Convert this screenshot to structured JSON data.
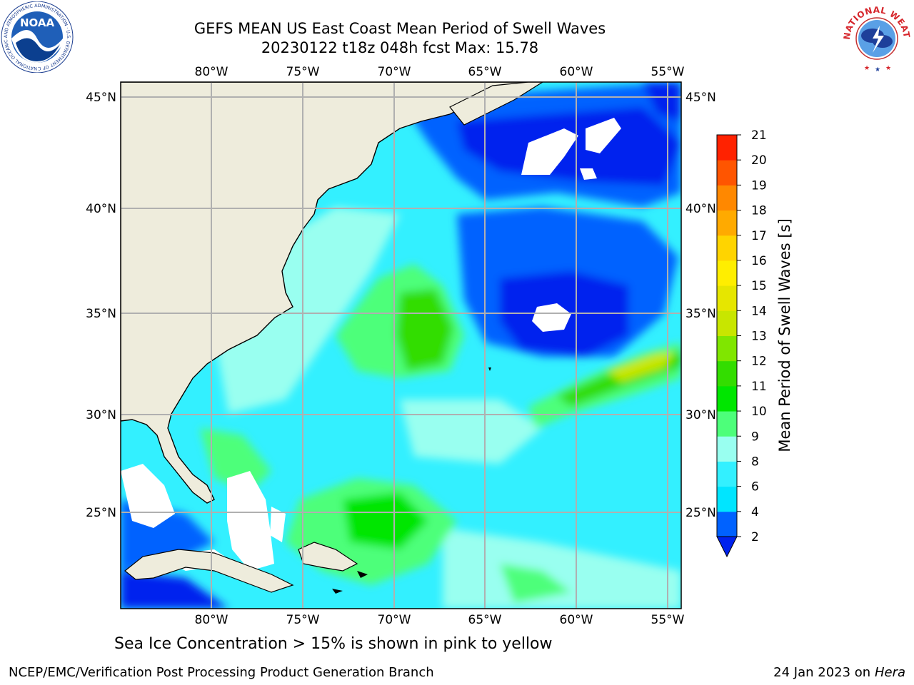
{
  "title_line1": "GEFS MEAN US East Coast Mean Period of Swell Waves",
  "title_line2": "20230122 t18z 048h fcst   Max: 15.78",
  "map": {
    "lon_ticks": [
      "80°W",
      "75°W",
      "70°W",
      "65°W",
      "60°W",
      "55°W"
    ],
    "lat_ticks": [
      "45°N",
      "40°N",
      "35°N",
      "30°N",
      "25°N"
    ],
    "lon_range": [
      -85,
      -55
    ],
    "lat_range": [
      20.5,
      46
    ],
    "gridlines": true,
    "land_color": "#eeecdc",
    "missing_color": "#ffffff"
  },
  "colorbar": {
    "label": "Mean Period of Swell Waves [s]",
    "ticks": [
      "2",
      "4",
      "6",
      "8",
      "9",
      "10",
      "11",
      "12",
      "13",
      "14",
      "15",
      "16",
      "17",
      "18",
      "19",
      "20",
      "21"
    ],
    "colors": [
      "#0062ff",
      "#00e5ff",
      "#33f0ff",
      "#99fff0",
      "#4dff7a",
      "#00e600",
      "#33dd00",
      "#80e600",
      "#c8e600",
      "#e6e600",
      "#ffee00",
      "#ffd400",
      "#ffaa00",
      "#ff8800",
      "#ff5500",
      "#ff2200"
    ],
    "under_color": "#0022ee"
  },
  "sea_ice_note": "Sea Ice Concentration > 15% is shown in pink to yellow",
  "credit_left": "NCEP/EMC/Verification Post Processing Product Generation Branch",
  "credit_right_date": "24 Jan 2023 on ",
  "credit_right_machine": "Hera",
  "logos": {
    "noaa": {
      "text": "NOAA",
      "ring": "NATIONAL OCEANIC AND ATMOSPHERIC ADMINISTRATION · U.S. DEPARTMENT OF COMMERCE"
    },
    "nws": {
      "ring": "NATIONAL WEATHER SERVICE"
    }
  }
}
